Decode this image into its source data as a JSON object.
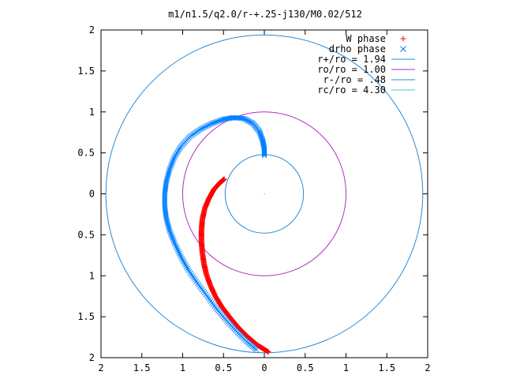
{
  "chart_data": {
    "type": "scatter",
    "title": "m1/n1.5/q2.0/r-+.25-j130/M0.02/512",
    "xlim": [
      -2,
      2
    ],
    "ylim": [
      -2,
      2
    ],
    "x_ticks": [
      -2,
      -1.5,
      -1,
      -0.5,
      0,
      0.5,
      1,
      1.5,
      2
    ],
    "y_ticks": [
      -2,
      -1.5,
      -1,
      -0.5,
      0,
      0.5,
      1,
      1.5,
      2
    ],
    "x_tick_labels": [
      "2",
      "1.5",
      "1",
      "0.5",
      "0",
      "0.5",
      "1",
      "1.5",
      "2"
    ],
    "y_tick_labels": [
      "2",
      "1.5",
      "1",
      "0.5",
      "0",
      "0.5",
      "1",
      "1.5",
      "2"
    ],
    "grid": false,
    "legend_position": "top-right",
    "series": [
      {
        "name": "W phase",
        "marker": "+",
        "color": "#ff0000",
        "points": [
          [
            -0.49,
            0.18
          ],
          [
            -0.55,
            0.13
          ],
          [
            -0.62,
            0.05
          ],
          [
            -0.68,
            -0.06
          ],
          [
            -0.73,
            -0.18
          ],
          [
            -0.76,
            -0.32
          ],
          [
            -0.77,
            -0.45
          ],
          [
            -0.77,
            -0.58
          ],
          [
            -0.76,
            -0.71
          ],
          [
            -0.74,
            -0.85
          ],
          [
            -0.71,
            -0.98
          ],
          [
            -0.66,
            -1.12
          ],
          [
            -0.6,
            -1.25
          ],
          [
            -0.52,
            -1.38
          ],
          [
            -0.42,
            -1.51
          ],
          [
            -0.32,
            -1.63
          ],
          [
            -0.2,
            -1.75
          ],
          [
            -0.08,
            -1.85
          ],
          [
            0.05,
            -1.93
          ]
        ]
      },
      {
        "name": "drho phase",
        "marker": "x",
        "color": "#0080ff",
        "points": [
          [
            0.0,
            0.47
          ],
          [
            0.0,
            0.55
          ],
          [
            -0.02,
            0.65
          ],
          [
            -0.06,
            0.76
          ],
          [
            -0.14,
            0.86
          ],
          [
            -0.25,
            0.92
          ],
          [
            -0.38,
            0.93
          ],
          [
            -0.5,
            0.91
          ],
          [
            -0.64,
            0.86
          ],
          [
            -0.78,
            0.79
          ],
          [
            -0.91,
            0.7
          ],
          [
            -1.02,
            0.58
          ],
          [
            -1.1,
            0.45
          ],
          [
            -1.16,
            0.3
          ],
          [
            -1.2,
            0.15
          ],
          [
            -1.22,
            0.0
          ],
          [
            -1.22,
            -0.15
          ],
          [
            -1.2,
            -0.3
          ],
          [
            -1.16,
            -0.45
          ],
          [
            -1.1,
            -0.6
          ],
          [
            -1.02,
            -0.77
          ],
          [
            -0.93,
            -0.93
          ],
          [
            -0.82,
            -1.09
          ],
          [
            -0.7,
            -1.25
          ],
          [
            -0.58,
            -1.41
          ],
          [
            -0.46,
            -1.55
          ],
          [
            -0.34,
            -1.68
          ],
          [
            -0.22,
            -1.8
          ],
          [
            -0.1,
            -1.9
          ]
        ]
      }
    ],
    "circles": [
      {
        "name": "r+/ro = 1.94",
        "radius": 1.94,
        "color": "#2a8ad4"
      },
      {
        "name": "ro/ro = 1.00",
        "radius": 1.0,
        "color": "#b030c0"
      },
      {
        "name": "r-/ro = .48",
        "radius": 0.48,
        "color": "#2a8ad4"
      },
      {
        "name": "rc/ro = 4.30",
        "radius": 4.3,
        "color": "#40c8d8"
      }
    ]
  }
}
